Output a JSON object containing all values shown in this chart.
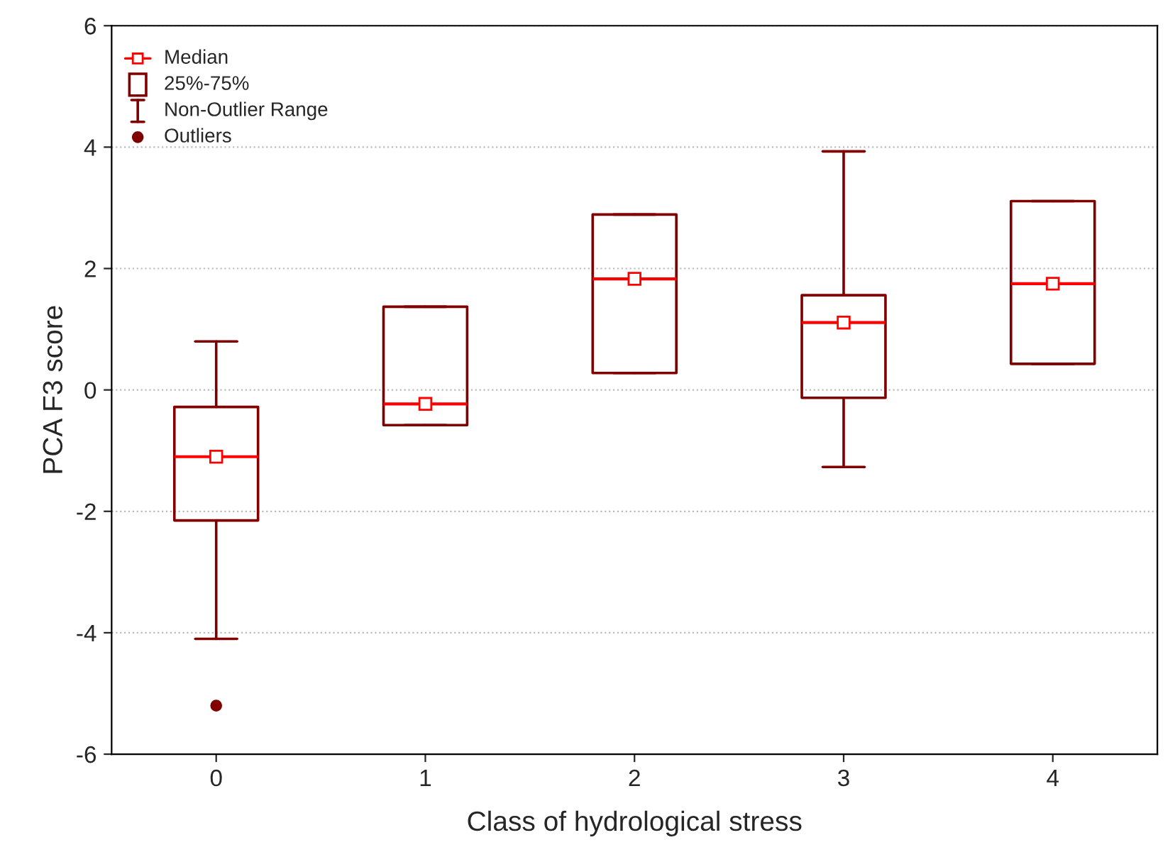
{
  "chart_data": {
    "type": "box",
    "xlabel": "Class of hydrological stress",
    "ylabel": "PCA F3 score",
    "categories": [
      "0",
      "1",
      "2",
      "3",
      "4"
    ],
    "series": [
      {
        "color": "#800000",
        "boxes": [
          {
            "low": -4.1,
            "q1": -2.15,
            "median": -1.1,
            "q3": -0.28,
            "high": 0.8,
            "outliers": [
              -5.2
            ]
          },
          {
            "low": -0.58,
            "q1": -0.58,
            "median": -0.23,
            "q3": 1.37,
            "high": 1.37
          },
          {
            "low": 0.28,
            "q1": 0.28,
            "median": 1.83,
            "q3": 2.89,
            "high": 2.89
          },
          {
            "low": -1.27,
            "q1": -0.13,
            "median": 1.11,
            "q3": 1.56,
            "high": 3.93
          },
          {
            "low": 0.43,
            "q1": 0.43,
            "median": 1.75,
            "q3": 3.11,
            "high": 3.11
          }
        ]
      }
    ],
    "ylim": [
      -6,
      6
    ],
    "yticks": [
      -6,
      -4,
      -2,
      0,
      2,
      4,
      6
    ],
    "grid": "y",
    "marker": "square",
    "annotations": [
      "Median",
      "25%-75%",
      "Non-Outlier Range",
      "Outliers"
    ]
  }
}
